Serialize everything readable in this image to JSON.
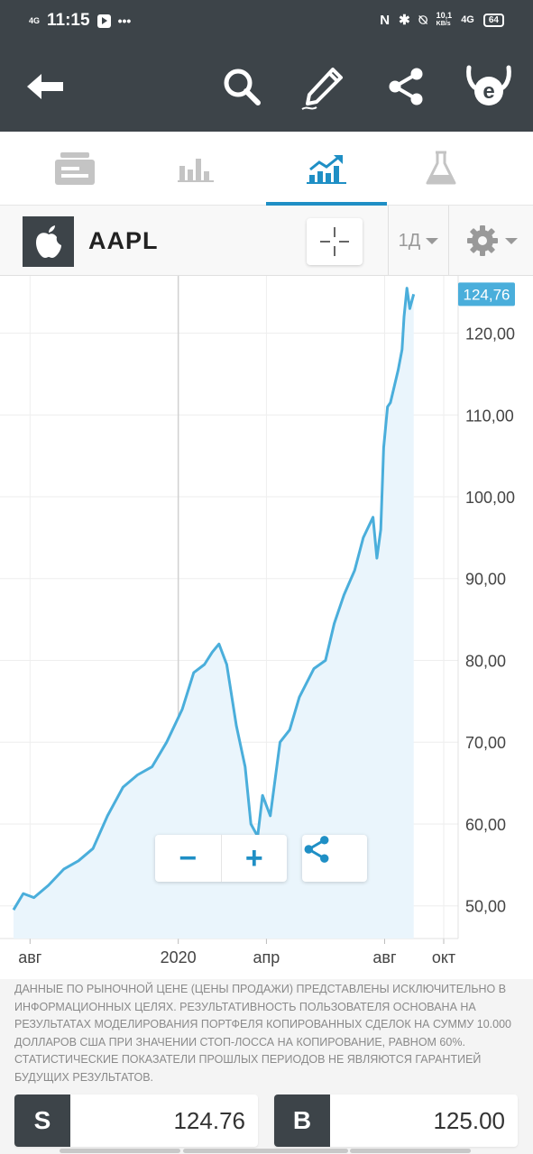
{
  "status_bar": {
    "network": "4G",
    "time": "11:15",
    "dots": "•••",
    "speed_value": "10,1",
    "speed_unit": "KB/s",
    "network_right": "4G",
    "battery": "64"
  },
  "toolbar": {
    "icons": [
      "back-arrow-icon",
      "search-icon",
      "pencil-icon",
      "share-icon",
      "etoro-logo-icon"
    ]
  },
  "tabs": {
    "items": [
      {
        "icon": "news-icon",
        "active": false
      },
      {
        "icon": "stats-icon",
        "active": false
      },
      {
        "icon": "chart-trend-icon",
        "active": true
      },
      {
        "icon": "flask-icon",
        "active": false
      }
    ],
    "active_color": "#1f8fc5"
  },
  "symbol": {
    "name": "AAPL",
    "logo": "apple-logo-icon",
    "period": "1Д"
  },
  "chart_data": {
    "type": "area",
    "series": [
      {
        "x": [
          "2019-07-15",
          "2019-07-25",
          "2019-08-05",
          "2019-08-20",
          "2019-09-05",
          "2019-09-20",
          "2019-10-05",
          "2019-10-20",
          "2019-11-05",
          "2019-11-20",
          "2019-12-05",
          "2019-12-20",
          "2020-01-05",
          "2020-01-17",
          "2020-01-28",
          "2020-02-05",
          "2020-02-12",
          "2020-02-20",
          "2020-03-01",
          "2020-03-10",
          "2020-03-16",
          "2020-03-23",
          "2020-03-28",
          "2020-04-05",
          "2020-04-15",
          "2020-04-25",
          "2020-05-05",
          "2020-05-20",
          "2020-06-01",
          "2020-06-10",
          "2020-06-20",
          "2020-07-01",
          "2020-07-10",
          "2020-07-20",
          "2020-07-24",
          "2020-07-28",
          "2020-07-31",
          "2020-08-04",
          "2020-08-07",
          "2020-08-11",
          "2020-08-15",
          "2020-08-19",
          "2020-08-21",
          "2020-08-24",
          "2020-08-27",
          "2020-08-31"
        ],
        "values": [
          49.5,
          51.5,
          51.0,
          52.5,
          54.5,
          55.5,
          57.0,
          61.0,
          64.5,
          66.0,
          67.0,
          70.0,
          74.0,
          78.5,
          79.5,
          81.0,
          82.0,
          79.5,
          72.0,
          67.0,
          60.0,
          58.5,
          63.5,
          61.0,
          70.0,
          71.5,
          75.5,
          79.0,
          80.0,
          84.5,
          88.0,
          91.0,
          95.0,
          97.5,
          92.5,
          96.0,
          106.0,
          111.0,
          111.5,
          113.5,
          115.5,
          118.0,
          122.0,
          125.5,
          123.0,
          124.76
        ]
      }
    ],
    "ylim": [
      46,
      127
    ],
    "yticks": [
      "50,00",
      "60,00",
      "70,00",
      "80,00",
      "90,00",
      "100,00",
      "110,00",
      "120,00"
    ],
    "xtick_labels": [
      "авг",
      "2020",
      "апр",
      "авг",
      "окт"
    ],
    "last_price_label": "124,76",
    "line_color": "#4aaedb",
    "fill_color": "#eaf5fc",
    "grid": true
  },
  "chart_controls": {
    "zoom_out": "−",
    "zoom_in": "+"
  },
  "disclaimer": "ДАННЫЕ ПО РЫНОЧНОЙ ЦЕНЕ (ЦЕНЫ ПРОДАЖИ) ПРЕДСТАВЛЕНЫ ИСКЛЮЧИТЕЛЬНО В ИНФОРМАЦИОННЫХ ЦЕЛЯХ. РЕЗУЛЬТАТИВНОСТЬ ПОЛЬЗОВАТЕЛЯ ОСНОВАНА НА РЕЗУЛЬТАТАХ МОДЕЛИРОВАНИЯ ПОРТФЕЛЯ КОПИРОВАННЫХ СДЕЛОК НА СУММУ 10.000 ДОЛЛАРОВ США ПРИ ЗНАЧЕНИИ СТОП-ЛОССА НА КОПИРОВАНИЕ, РАВНОМ 60%. СТАТИСТИЧЕСКИЕ ПОКАЗАТЕЛИ ПРОШЛЫХ ПЕРИОДОВ НЕ ЯВЛЯЮТСЯ ГАРАНТИЕЙ БУДУЩИХ РЕЗУЛЬТАТОВ.",
  "trade": {
    "sell_label": "S",
    "sell_price": "124.76",
    "buy_label": "B",
    "buy_price": "125.00"
  }
}
